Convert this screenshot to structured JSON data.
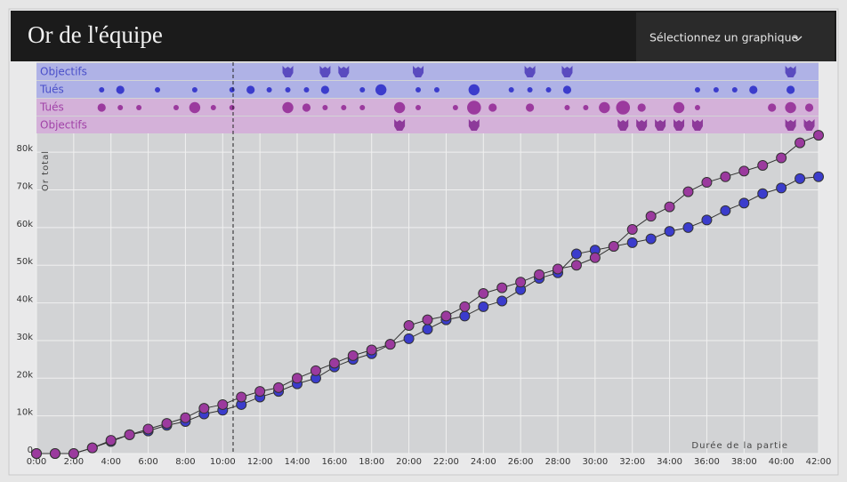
{
  "header": {
    "title": "Or de l'équipe",
    "dropdown": "Sélectionnez un graphique"
  },
  "chart_data": {
    "type": "line",
    "ylabel": "Or total",
    "xlabel": "Durée de la partie",
    "x": [
      0,
      1,
      2,
      3,
      4,
      5,
      6,
      7,
      8,
      9,
      10,
      11,
      12,
      13,
      14,
      15,
      16,
      17,
      18,
      19,
      20,
      21,
      22,
      23,
      24,
      25,
      26,
      27,
      28,
      29,
      30,
      31,
      32,
      33,
      34,
      35,
      36,
      37,
      38,
      39,
      40,
      41,
      42
    ],
    "xlim": [
      0,
      42
    ],
    "xticks": [
      {
        "value": 0,
        "label": "0:00"
      },
      {
        "value": 2,
        "label": "2:00"
      },
      {
        "value": 4,
        "label": "4:00"
      },
      {
        "value": 6,
        "label": "6:00"
      },
      {
        "value": 8,
        "label": "8:00"
      },
      {
        "value": 10,
        "label": "10:00"
      },
      {
        "value": 12,
        "label": "12:00"
      },
      {
        "value": 14,
        "label": "14:00"
      },
      {
        "value": 16,
        "label": "16:00"
      },
      {
        "value": 18,
        "label": "18:00"
      },
      {
        "value": 20,
        "label": "20:00"
      },
      {
        "value": 22,
        "label": "22:00"
      },
      {
        "value": 24,
        "label": "24:00"
      },
      {
        "value": 26,
        "label": "26:00"
      },
      {
        "value": 28,
        "label": "28:00"
      },
      {
        "value": 30,
        "label": "30:00"
      },
      {
        "value": 32,
        "label": "32:00"
      },
      {
        "value": 34,
        "label": "34:00"
      },
      {
        "value": 36,
        "label": "36:00"
      },
      {
        "value": 38,
        "label": "38:00"
      },
      {
        "value": 40,
        "label": "40:00"
      },
      {
        "value": 42,
        "label": "42:00"
      }
    ],
    "ylim": [
      0,
      85000
    ],
    "yticks": [
      0,
      {
        "value": 10000,
        "label": "10k"
      },
      {
        "value": 20000,
        "label": "20k"
      },
      {
        "value": 30000,
        "label": "30k"
      },
      {
        "value": 40000,
        "label": "40k"
      },
      {
        "value": 50000,
        "label": "50k"
      },
      {
        "value": 60000,
        "label": "60k"
      },
      {
        "value": 70000,
        "label": "70k"
      },
      {
        "value": 80000,
        "label": "80k"
      }
    ],
    "grid": true,
    "series": [
      {
        "color": "#3b3ccc",
        "values": [
          0,
          0,
          0,
          1500,
          3200,
          5000,
          6000,
          7500,
          8500,
          10500,
          11500,
          13000,
          15000,
          16500,
          18500,
          20000,
          23000,
          25000,
          26500,
          29000,
          30500,
          33000,
          35500,
          36500,
          39000,
          40500,
          43500,
          46500,
          48000,
          53000,
          54000,
          55000,
          56000,
          57000,
          59000,
          60000,
          62000,
          64500,
          66500,
          69000,
          70500,
          73000,
          73500
        ]
      },
      {
        "color": "#9b3a9e",
        "values": [
          0,
          0,
          0,
          1500,
          3500,
          5000,
          6500,
          8000,
          9500,
          12000,
          13000,
          15000,
          16500,
          17500,
          20000,
          22000,
          24000,
          26000,
          27500,
          29000,
          34000,
          35500,
          36500,
          39000,
          42500,
          44000,
          45500,
          47500,
          49000,
          50000,
          52000,
          55000,
          59500,
          63000,
          65500,
          69500,
          72000,
          73500,
          75000,
          76500,
          78500,
          82500,
          84500
        ]
      }
    ],
    "events": [
      {
        "name": "Objectifs",
        "color": "#5a4bbf",
        "times": [
          13.5,
          15.5,
          16.5,
          20.5,
          26.5,
          28.5,
          40.5
        ]
      },
      {
        "name": "Tués",
        "color": "#3b3ccc",
        "times": [
          3.5,
          4.5,
          6.5,
          8.5,
          10.5,
          11.5,
          12.5,
          13.5,
          14.5,
          15.5,
          17.5,
          18.5,
          20.5,
          21.5,
          23.5,
          25.5,
          26.5,
          27.5,
          28.5,
          35.5,
          36.5,
          37.5,
          38.5,
          40.5
        ],
        "counts": [
          1,
          2,
          1,
          1,
          1,
          2,
          1,
          1,
          1,
          2,
          1,
          3,
          1,
          1,
          3,
          1,
          1,
          1,
          2,
          1,
          1,
          1,
          2,
          2
        ]
      },
      {
        "name": "Tués",
        "color": "#9b3a9e",
        "times": [
          3.5,
          4.5,
          5.5,
          7.5,
          8.5,
          9.5,
          10.5,
          13.5,
          14.5,
          15.5,
          16.5,
          17.5,
          19.5,
          20.5,
          22.5,
          23.5,
          24.5,
          26.5,
          28.5,
          29.5,
          30.5,
          31.5,
          32.5,
          34.5,
          35.5,
          39.5,
          40.5,
          41.5
        ],
        "counts": [
          2,
          1,
          1,
          1,
          3,
          1,
          1,
          3,
          2,
          1,
          1,
          1,
          3,
          1,
          1,
          4,
          2,
          2,
          1,
          1,
          3,
          4,
          2,
          3,
          1,
          2,
          3,
          2
        ]
      },
      {
        "name": "Objectifs",
        "color": "#8d3a9a",
        "times": [
          19.5,
          23.5,
          31.5,
          32.5,
          33.5,
          34.5,
          35.5,
          40.5,
          41.5
        ]
      }
    ]
  }
}
